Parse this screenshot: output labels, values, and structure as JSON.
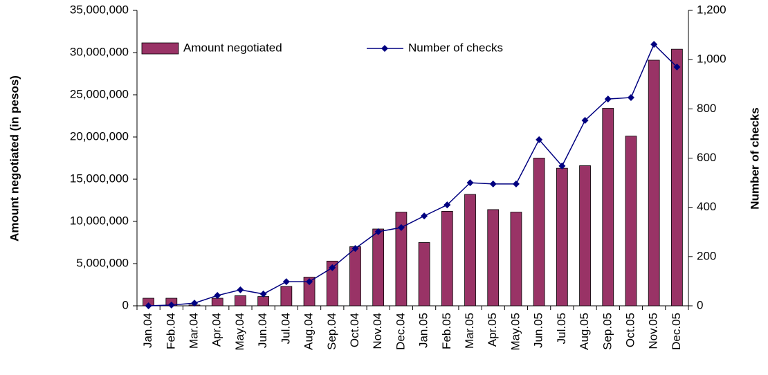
{
  "chart_data": {
    "type": "combo",
    "y_label": "Amount negotiated (in pesos)",
    "y2_label": "Number of checks",
    "categories": [
      "Jan.04",
      "Feb.04",
      "Mar.04",
      "Apr.04",
      "May.04",
      "Jun.04",
      "Jul.04",
      "Aug.04",
      "Sep.04",
      "Oct.04",
      "Nov.04",
      "Dec.04",
      "Jan.05",
      "Feb.05",
      "Mar.05",
      "Apr.05",
      "May.05",
      "Jun.05",
      "Jul.05",
      "Aug.05",
      "Sep.05",
      "Oct.05",
      "Nov.05",
      "Dec.05"
    ],
    "series": [
      {
        "name": "Amount negotiated",
        "type": "bar",
        "color": "#993366",
        "values": [
          900000,
          900000,
          100000,
          900000,
          1200000,
          1100000,
          2300000,
          3400000,
          5300000,
          7000000,
          9100000,
          11100000,
          7500000,
          11200000,
          13200000,
          11400000,
          11100000,
          17500000,
          16300000,
          16600000,
          23400000,
          20100000,
          29100000,
          30400000
        ]
      },
      {
        "name": "Number of checks",
        "type": "line",
        "axis": "y2",
        "color": "#000080",
        "values": [
          0,
          3,
          11,
          42,
          65,
          48,
          98,
          98,
          155,
          233,
          301,
          318,
          365,
          410,
          500,
          495,
          495,
          675,
          568,
          753,
          840,
          846,
          1062,
          970
        ]
      }
    ],
    "ylim": [
      0,
      35000000
    ],
    "yticks": [
      0,
      {
        "value": 5000000,
        "label": "5,000,000"
      },
      {
        "value": 10000000,
        "label": "10,000,000"
      },
      {
        "value": 15000000,
        "label": "15,000,000"
      },
      {
        "value": 20000000,
        "label": "20,000,000"
      },
      {
        "value": 25000000,
        "label": "25,000,000"
      },
      {
        "value": 30000000,
        "label": "30,000,000"
      },
      {
        "value": 35000000,
        "label": "35,000,000"
      }
    ],
    "y2lim": [
      0,
      1200
    ],
    "y2ticks": [
      0,
      200,
      400,
      600,
      800,
      {
        "value": 1000,
        "label": "1,000"
      },
      {
        "value": 1200,
        "label": "1,200"
      }
    ],
    "grid": false,
    "legend": "top"
  }
}
